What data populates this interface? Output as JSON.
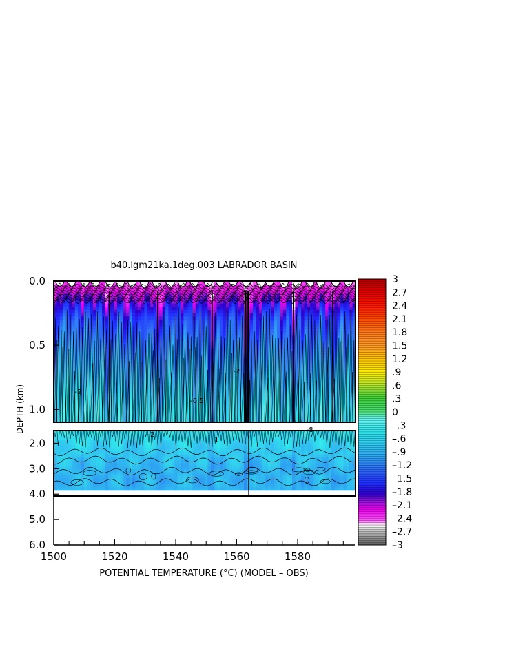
{
  "chart_data": {
    "type": "heatmap",
    "title": "b40.lgm21ka.1deg.003 LABRADOR BASIN",
    "xlabel": "POTENTIAL TEMPERATURE (°C) (MODEL – OBS)",
    "ylabel": "DEPTH (km)",
    "xlim": [
      1500,
      1599
    ],
    "x_ticks": [
      "1500",
      "1520",
      "1540",
      "1560",
      "1580"
    ],
    "x_tick_values": [
      1500,
      1520,
      1540,
      1560,
      1580
    ],
    "upper_panel": {
      "ylim": [
        0.0,
        1.1
      ],
      "y_ticks": [
        "0.0",
        "0.5",
        "1.0"
      ],
      "y_tick_values": [
        0.0,
        0.5,
        1.0
      ]
    },
    "lower_panel": {
      "ylim": [
        1.5,
        6.0
      ],
      "y_ticks": [
        "2.0",
        "3.0",
        "4.0",
        "5.0",
        "6.0"
      ],
      "y_tick_values": [
        2.0,
        3.0,
        4.0,
        5.0,
        6.0
      ],
      "data_bottom_depth": 3.85
    },
    "colorbar": {
      "labels": [
        "3",
        "2.7",
        "2.4",
        "2.1",
        "1.8",
        "1.5",
        "1.2",
        ".9",
        ".6",
        ".3",
        "0",
        "–.3",
        "–.6",
        "–.9",
        "–1.2",
        "–1.5",
        "–1.8",
        "–2.1",
        "–2.4",
        "–2.7",
        "–3"
      ],
      "label_values": [
        3,
        2.7,
        2.4,
        2.1,
        1.8,
        1.5,
        1.2,
        0.9,
        0.6,
        0.3,
        0,
        -0.3,
        -0.6,
        -0.9,
        -1.2,
        -1.5,
        -1.8,
        -2.1,
        -2.4,
        -2.7,
        -3
      ],
      "range": [
        -3,
        3
      ]
    },
    "field_summary": {
      "surface_value": -2.4,
      "value_at_0_3km": -1.5,
      "value_at_1_0km": -0.6,
      "value_at_2_0km": -0.5,
      "value_at_3_0km": -0.9
    },
    "contour_labels": [
      "-2",
      "-1",
      "-8",
      "-0.5"
    ],
    "grid": false
  }
}
